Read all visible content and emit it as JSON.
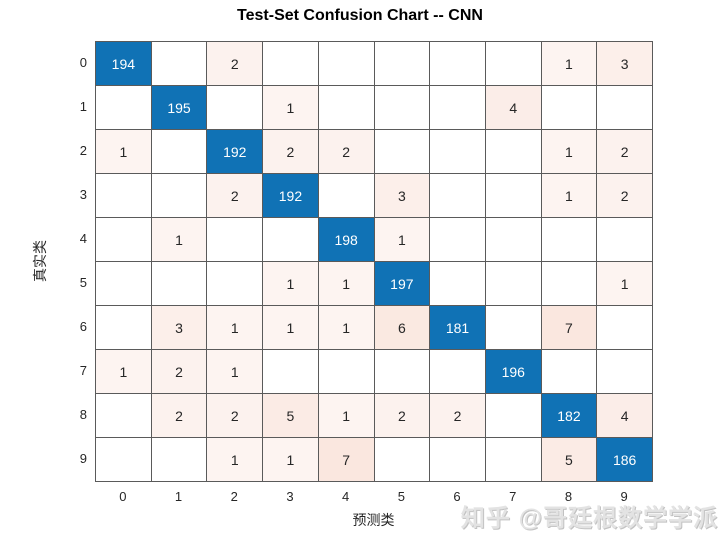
{
  "title": "Test-Set Confusion Chart -- CNN",
  "watermark": "知乎 @哥廷根数学学派",
  "chart_data": {
    "type": "heatmap",
    "subtype": "confusion-matrix",
    "title": "Test-Set Confusion Chart -- CNN",
    "xlabel": "预测类",
    "ylabel": "真实类",
    "x_tick_labels": [
      "0",
      "1",
      "2",
      "3",
      "4",
      "5",
      "6",
      "7",
      "8",
      "9"
    ],
    "y_tick_labels": [
      "0",
      "1",
      "2",
      "3",
      "4",
      "5",
      "6",
      "7",
      "8",
      "9"
    ],
    "matrix": [
      [
        194,
        0,
        2,
        0,
        0,
        0,
        0,
        0,
        1,
        3
      ],
      [
        0,
        195,
        0,
        1,
        0,
        0,
        0,
        4,
        0,
        0
      ],
      [
        1,
        0,
        192,
        2,
        2,
        0,
        0,
        0,
        1,
        2
      ],
      [
        0,
        0,
        2,
        192,
        0,
        3,
        0,
        0,
        1,
        2
      ],
      [
        0,
        1,
        0,
        0,
        198,
        1,
        0,
        0,
        0,
        0
      ],
      [
        0,
        0,
        0,
        1,
        1,
        197,
        0,
        0,
        0,
        1
      ],
      [
        0,
        3,
        1,
        1,
        1,
        6,
        181,
        0,
        7,
        0
      ],
      [
        1,
        2,
        1,
        0,
        0,
        0,
        0,
        196,
        0,
        0
      ],
      [
        0,
        2,
        2,
        5,
        1,
        2,
        2,
        0,
        182,
        4
      ],
      [
        0,
        0,
        1,
        1,
        7,
        0,
        0,
        0,
        5,
        186
      ]
    ],
    "zero_cells_blank": true,
    "legend": "none",
    "grid": "on",
    "colors": {
      "diagonal": "#1072b5",
      "diagonal_text": "#ffffff",
      "off_diagonal_base": "#d95319",
      "zero_cell": "#ffffff",
      "grid_line": "#5a5a5a",
      "cell_text": "#262626",
      "tick_text": "#262626",
      "title_text": "#000000",
      "watermark_text": "#e3e3e3"
    }
  }
}
